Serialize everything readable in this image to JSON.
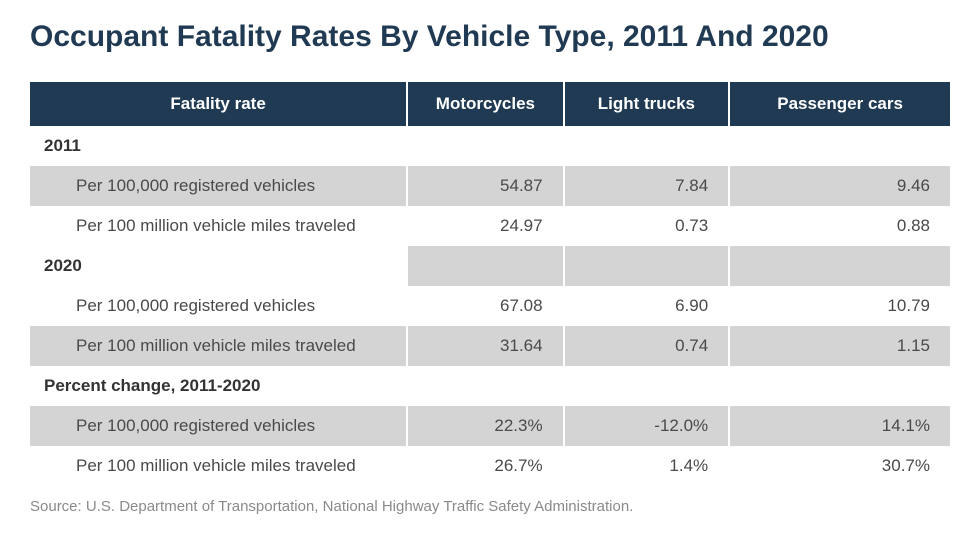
{
  "title": "Occupant Fatality Rates By Vehicle Type, 2011 And 2020",
  "table": {
    "header_bg": "#1f3a52",
    "header_fg": "#ffffff",
    "shade_bg": "#d4d4d4",
    "columns": [
      "Fatality rate",
      "Motorcycles",
      "Light trucks",
      "Passenger cars"
    ],
    "col_widths_pct": [
      41,
      17,
      18,
      24
    ],
    "sections": [
      {
        "label": "2011",
        "rows": [
          {
            "label": "Per 100,000 registered vehicles",
            "values": [
              "54.87",
              "7.84",
              "9.46"
            ],
            "shaded": true
          },
          {
            "label": "Per 100 million vehicle miles traveled",
            "values": [
              "24.97",
              "0.73",
              "0.88"
            ],
            "shaded": false
          }
        ]
      },
      {
        "label": "2020",
        "section_shaded_cells": true,
        "rows": [
          {
            "label": "Per 100,000 registered vehicles",
            "values": [
              "67.08",
              "6.90",
              "10.79"
            ],
            "shaded": false
          },
          {
            "label": "Per 100 million vehicle miles traveled",
            "values": [
              "31.64",
              "0.74",
              "1.15"
            ],
            "shaded": true
          }
        ]
      },
      {
        "label": "Percent change, 2011-2020",
        "rows": [
          {
            "label": "Per 100,000 registered vehicles",
            "values": [
              "22.3%",
              "-12.0%",
              "14.1%"
            ],
            "shaded": true
          },
          {
            "label": "Per 100 million vehicle miles traveled",
            "values": [
              "26.7%",
              "1.4%",
              "30.7%"
            ],
            "shaded": false
          }
        ]
      }
    ]
  },
  "source": "Source: U.S. Department of Transportation, National Highway Traffic Safety Administration.",
  "typography": {
    "title_fontsize": 30,
    "title_color": "#1f3a52",
    "header_fontsize": 17,
    "cell_fontsize": 17,
    "source_fontsize": 15,
    "source_color": "#8a8a8a"
  }
}
